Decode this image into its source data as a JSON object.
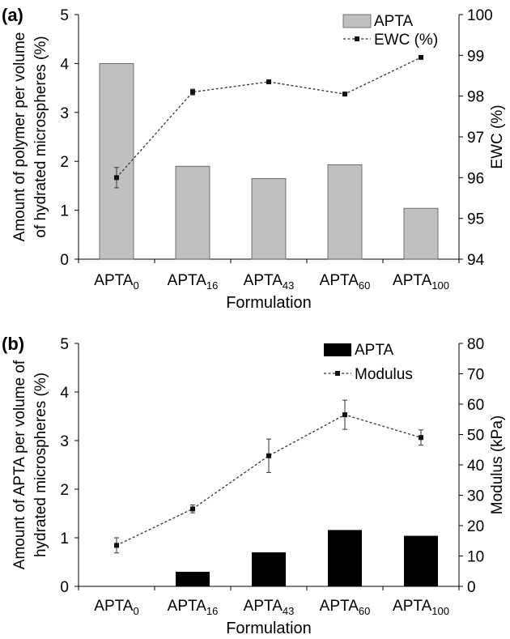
{
  "chart_data": [
    {
      "panel_label": "(a)",
      "type": "bar",
      "categories": [
        {
          "base": "APTA",
          "sub": "0"
        },
        {
          "base": "APTA",
          "sub": "16"
        },
        {
          "base": "APTA",
          "sub": "43"
        },
        {
          "base": "APTA",
          "sub": "60"
        },
        {
          "base": "APTA",
          "sub": "100"
        }
      ],
      "xlabel": "Formulation",
      "ylabel_lines": [
        "Amount of polymer per volume",
        "of hydrated microspheres (%)"
      ],
      "ylabel_right": "EWC (%)",
      "ylim": [
        0,
        5
      ],
      "yticks": [
        0,
        1,
        2,
        3,
        4,
        5
      ],
      "y2lim": [
        94,
        100
      ],
      "y2ticks": [
        94,
        95,
        96,
        97,
        98,
        99,
        100
      ],
      "bar_series": {
        "name": "APTA",
        "color": "#c0c0c0",
        "values": [
          4.0,
          1.9,
          1.65,
          1.93,
          1.04
        ]
      },
      "line_series": {
        "name": "EWC (%)",
        "color": "#333333",
        "values": [
          96.0,
          98.1,
          98.35,
          98.05,
          98.95
        ],
        "errors": [
          0.25,
          0.07,
          0.04,
          0.04,
          0.03
        ]
      },
      "legend_position": "top-right"
    },
    {
      "panel_label": "(b)",
      "type": "bar",
      "categories": [
        {
          "base": "APTA",
          "sub": "0"
        },
        {
          "base": "APTA",
          "sub": "16"
        },
        {
          "base": "APTA",
          "sub": "43"
        },
        {
          "base": "APTA",
          "sub": "60"
        },
        {
          "base": "APTA",
          "sub": "100"
        }
      ],
      "xlabel": "Formulation",
      "ylabel_lines": [
        "Amount of APTA per volume of",
        "hydrated microspheres (%)"
      ],
      "ylabel_right": "Modulus (kPa)",
      "ylim": [
        0,
        5
      ],
      "yticks": [
        0,
        1,
        2,
        3,
        4,
        5
      ],
      "y2lim": [
        0,
        80
      ],
      "y2ticks": [
        0,
        10,
        20,
        30,
        40,
        50,
        60,
        70,
        80
      ],
      "bar_series": {
        "name": "APTA",
        "color": "#000000",
        "values": [
          0,
          0.3,
          0.7,
          1.16,
          1.04
        ]
      },
      "line_series": {
        "name": "Modulus",
        "color": "#333333",
        "values": [
          13.5,
          25.5,
          43,
          56.5,
          49
        ],
        "errors": [
          2.5,
          1.3,
          5.5,
          4.8,
          2.5
        ]
      },
      "legend_position": "top-right"
    }
  ]
}
